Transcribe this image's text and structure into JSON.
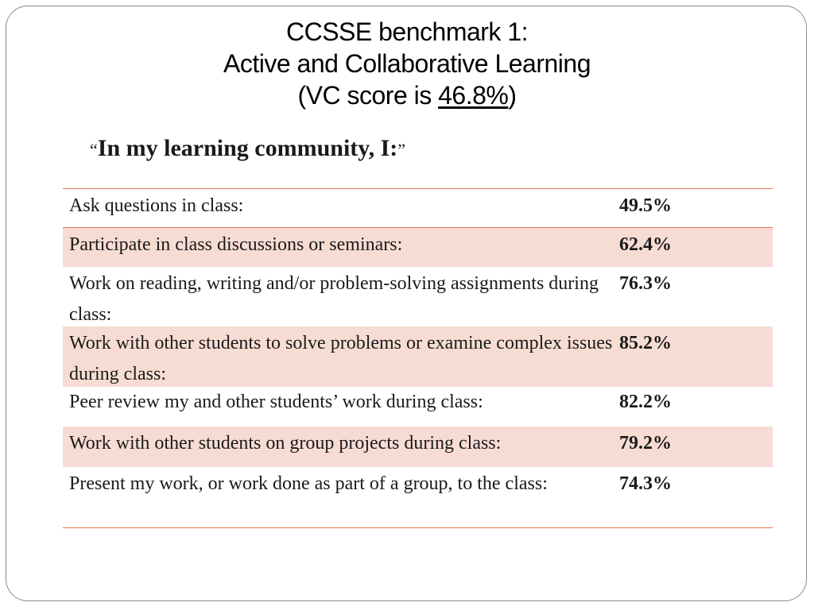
{
  "title": {
    "line1": "CCSSE benchmark 1:",
    "line2": "Active and Collaborative Learning",
    "score_prefix": "(VC score is ",
    "score_value": "46.8%",
    "score_suffix": ")"
  },
  "quote": {
    "open": "“",
    "text": "In my learning community, I:",
    "close": "”"
  },
  "rows": [
    {
      "label": "Ask questions in class:",
      "value": "49.5%"
    },
    {
      "label": "Participate in class discussions or seminars:",
      "value": "62.4%"
    },
    {
      "label": "Work on reading, writing and/or problem-solving assignments during class:",
      "value": "76.3%"
    },
    {
      "label": "Work with other students to solve problems or examine complex issues during class:",
      "value": "85.2%"
    },
    {
      "label": "Peer review my and other students’ work during class:",
      "value": "82.2%"
    },
    {
      "label": "Work with other students on group projects during class:",
      "value": "79.2%"
    },
    {
      "label": "Present my work, or work done as part of a group, to the class:",
      "value": "74.3%"
    }
  ],
  "colors": {
    "accent_line": "#e07a4f",
    "shaded_row": "#f7dcd3"
  }
}
